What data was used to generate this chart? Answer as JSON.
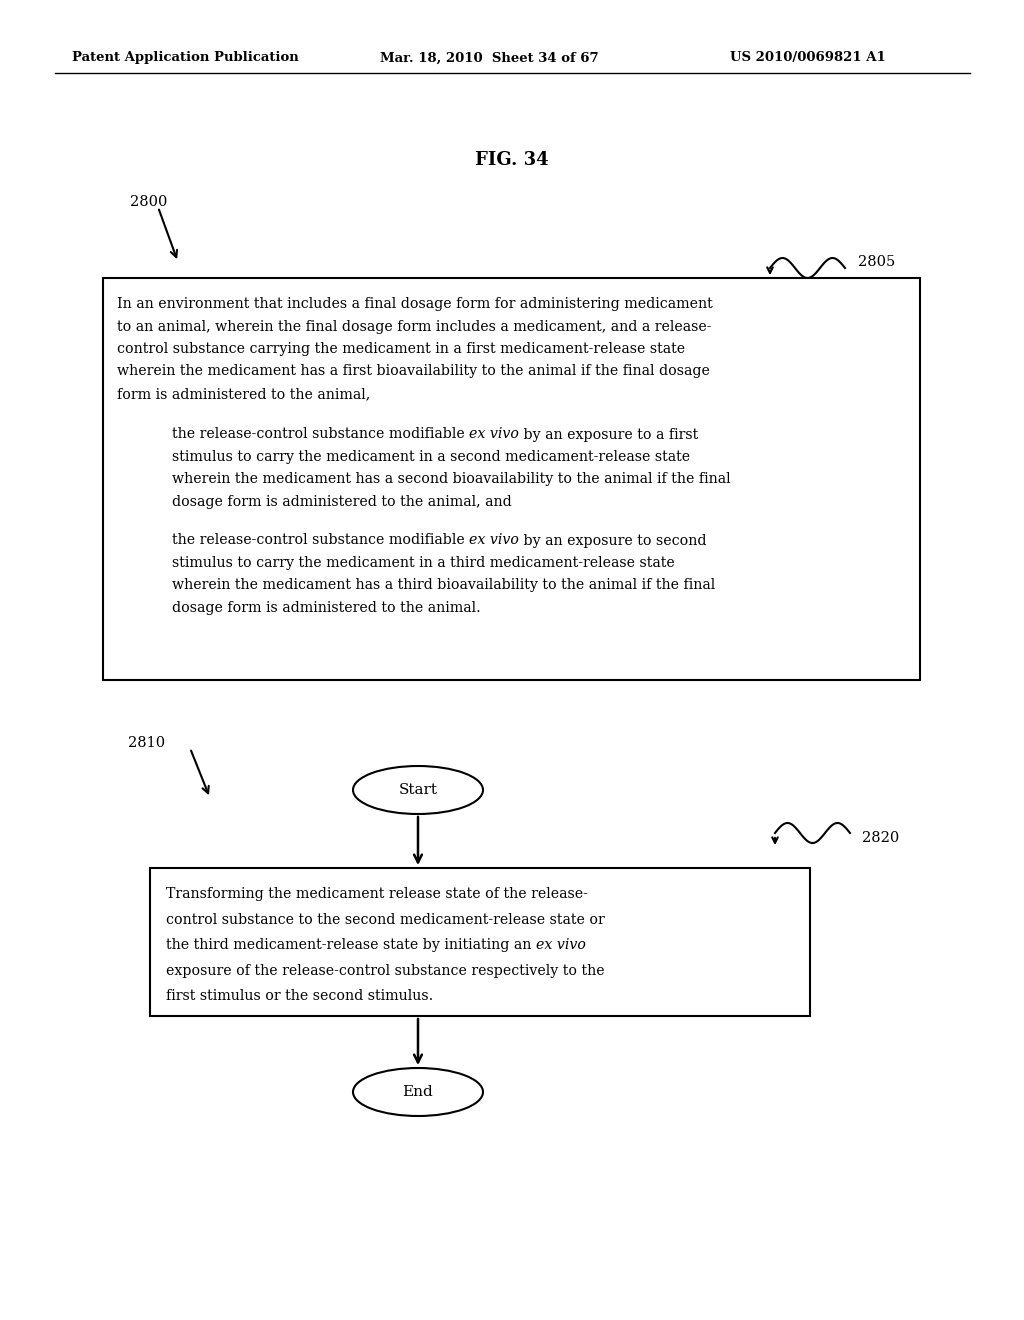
{
  "header_left": "Patent Application Publication",
  "header_mid": "Mar. 18, 2010  Sheet 34 of 67",
  "header_right": "US 2010/0069821 A1",
  "fig_title": "FIG. 34",
  "label_2800": "2800",
  "label_2805": "2805",
  "label_2810": "2810",
  "label_2820": "2820",
  "start_label": "Start",
  "end_label": "End",
  "bg_color": "#ffffff",
  "text_color": "#000000"
}
